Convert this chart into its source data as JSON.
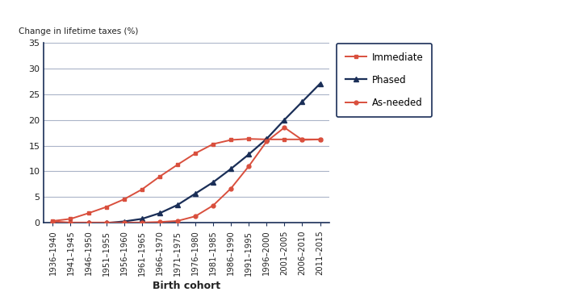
{
  "categories": [
    "1936–1940",
    "1941–1945",
    "1946–1950",
    "1951–1955",
    "1956–1960",
    "1961–1965",
    "1966–1970",
    "1971–1975",
    "1976–1980",
    "1981–1985",
    "1986–1990",
    "1991–1995",
    "1996–2000",
    "2001–2005",
    "2006–2010",
    "2011–2015"
  ],
  "immediate": [
    0.4,
    0.8,
    1.9,
    3.1,
    4.6,
    6.5,
    9.0,
    11.3,
    13.5,
    15.3,
    16.1,
    16.3,
    16.2,
    16.2,
    16.2,
    16.2
  ],
  "phased": [
    0.0,
    0.0,
    0.0,
    0.0,
    0.3,
    0.8,
    1.9,
    3.5,
    5.7,
    7.9,
    10.5,
    13.3,
    16.3,
    20.0,
    23.5,
    27.0
  ],
  "as_needed": [
    0.3,
    0.1,
    0.1,
    0.1,
    0.1,
    0.1,
    0.2,
    0.4,
    1.3,
    3.4,
    6.7,
    11.0,
    15.8,
    18.5,
    16.1,
    16.2
  ],
  "immediate_color": "#d94f3d",
  "phased_color": "#1a2e57",
  "as_needed_color": "#d94f3d",
  "ylabel": "Change in lifetime taxes (%)",
  "xlabel": "Birth cohort",
  "ylim": [
    0,
    35
  ],
  "yticks": [
    0,
    5,
    10,
    15,
    20,
    25,
    30,
    35
  ],
  "grid_color": "#aab4c8",
  "spine_color": "#1a2e57",
  "plot_bg": "#ffffff",
  "fig_bg": "#ffffff"
}
